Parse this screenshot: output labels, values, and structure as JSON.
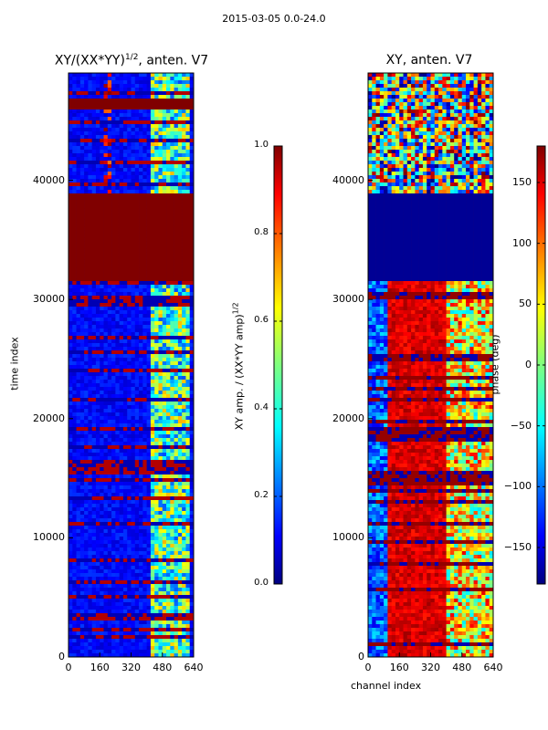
{
  "suptitle": "2015-03-05 0.0-24.0",
  "chart_data": [
    {
      "type": "heatmap",
      "title_main": "XY/(XX*YY)",
      "title_sup": "1/2",
      "title_tail": ", anten. V7",
      "xlabel": "",
      "ylabel": "time index",
      "xlim": [
        0,
        640
      ],
      "ylim": [
        0,
        49000
      ],
      "x_ticks": [
        0,
        160,
        320,
        480,
        640
      ],
      "y_ticks": [
        0,
        10000,
        20000,
        30000,
        40000
      ],
      "colorbar": {
        "label_main": "XY amp. / (XX*YY amp)",
        "label_sup": "1/2",
        "range": [
          0.0,
          1.0
        ],
        "ticks": [
          "0.0",
          "0.2",
          "0.4",
          "0.6",
          "0.8",
          "1.0"
        ]
      },
      "colormap": "jet",
      "regions": [
        {
          "from": 0,
          "to": 31500,
          "value": 0.1,
          "note": "mostly low amplitude, bright features at channels 400-620"
        },
        {
          "from": 31500,
          "to": 39000,
          "value": 1.0,
          "note": "saturated block"
        },
        {
          "from": 39000,
          "to": 46000,
          "value": 0.15,
          "note": "mixed, bright spot near channel 200"
        },
        {
          "from": 46000,
          "to": 47000,
          "value": 1.0,
          "note": "saturated band"
        },
        {
          "from": 47000,
          "to": 49000,
          "value": 0.2,
          "note": "mixed"
        }
      ]
    },
    {
      "type": "heatmap",
      "title_main": "XY, anten. V7",
      "xlabel": "channel index",
      "ylabel": "",
      "xlim": [
        0,
        640
      ],
      "ylim": [
        0,
        49000
      ],
      "x_ticks": [
        0,
        160,
        320,
        480,
        640
      ],
      "y_ticks": [
        0,
        10000,
        20000,
        30000,
        40000
      ],
      "colorbar": {
        "label": "phase (deg)",
        "range": [
          -180,
          180
        ],
        "ticks": [
          "−150",
          "−100",
          "−50",
          "0",
          "50",
          "100",
          "150"
        ]
      },
      "colormap": "jet",
      "regions": [
        {
          "from": 0,
          "to": 31500,
          "value": 150,
          "note": "phase mostly red in channels 120-400, blue at low channels"
        },
        {
          "from": 31500,
          "to": 39000,
          "value": -180,
          "note": "dark blue block"
        },
        {
          "from": 39000,
          "to": 49000,
          "value": 100,
          "note": "mixed noisy phase"
        }
      ]
    }
  ],
  "colors": {
    "jet_dark_blue": "#00007f",
    "jet_blue": "#0000ff",
    "jet_cyan": "#00ffff",
    "jet_yellow": "#ffff00",
    "jet_red": "#ff0000",
    "jet_dark_red": "#7f0000"
  }
}
